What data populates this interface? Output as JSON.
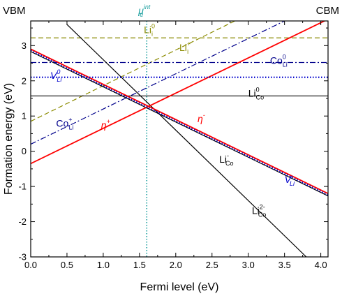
{
  "chart_data": {
    "type": "line",
    "xlabel": "Fermi level (eV)",
    "ylabel": "Formation energy (eV)",
    "xlim": [
      0,
      4.1
    ],
    "ylim": [
      -3,
      3.7
    ],
    "xticks": [
      "0.0",
      "0.5",
      "1.0",
      "1.5",
      "2.0",
      "2.5",
      "3.0",
      "3.5",
      "4.0"
    ],
    "yticks": [
      "-3",
      "-2",
      "-1",
      "0",
      "1",
      "2",
      "3"
    ],
    "grid": false,
    "corner_labels": {
      "left": "VBM",
      "right": "CBM"
    },
    "mu_e_int": {
      "x": 1.6,
      "label": "μ",
      "sub": "e",
      "sup": "int",
      "color": "#1a9e9e"
    },
    "series": [
      {
        "label": "Li",
        "sub": "i",
        "sup": "0",
        "style": "dash",
        "color": "#8b8b00",
        "x": [
          0,
          4.1
        ],
        "y": [
          3.22,
          3.22
        ],
        "label_pos": [
          1.56,
          3.35
        ]
      },
      {
        "label": "Li",
        "sub": "i",
        "sup": "+",
        "style": "dash",
        "color": "#8b8b00",
        "x": [
          0,
          4.1
        ],
        "y": [
          0.85,
          5.0
        ],
        "label_pos": [
          2.05,
          2.85
        ]
      },
      {
        "label": "Co",
        "sub": "Li",
        "sup": "0",
        "style": "dashdot",
        "color": "#00008b",
        "x": [
          0,
          4.1
        ],
        "y": [
          2.52,
          2.52
        ],
        "label_pos": [
          3.3,
          2.48
        ]
      },
      {
        "label": "Co",
        "sub": "Li",
        "sup": "+",
        "style": "dashdot",
        "color": "#00008b",
        "x": [
          0,
          4.1
        ],
        "y": [
          0.2,
          4.3
        ],
        "label_pos": [
          0.35,
          0.7
        ]
      },
      {
        "label": "V",
        "sub": "Li",
        "sup": "0",
        "style": "dot",
        "color": "#0000cc",
        "x": [
          0,
          4.1
        ],
        "y": [
          2.1,
          2.1
        ],
        "label_pos": [
          0.27,
          2.05
        ]
      },
      {
        "label": "Li",
        "sub": "Co",
        "sup": "0",
        "style": "solid",
        "color": "#000000",
        "x": [
          0,
          4.1
        ],
        "y": [
          1.57,
          1.57
        ],
        "label_pos": [
          3.0,
          1.55
        ]
      },
      {
        "label": "Li",
        "sub": "Co",
        "sup": "2-",
        "style": "solid",
        "color": "#000000",
        "x": [
          0.5,
          3.8
        ],
        "y": [
          3.6,
          -3.0
        ],
        "label_pos": [
          3.05,
          -1.78
        ]
      },
      {
        "label": "Li",
        "sub": "Co",
        "sup": "-",
        "style": "solid",
        "color": "#000000",
        "x": [
          0,
          4.1
        ],
        "y": [
          2.83,
          -1.27
        ],
        "label_pos": [
          2.6,
          -0.32
        ]
      },
      {
        "label": "V",
        "sub": "Li",
        "sup": "-",
        "style": "dot",
        "color": "#0000cc",
        "x": [
          0,
          4.1
        ],
        "y": [
          2.86,
          -1.24
        ],
        "label_pos": [
          3.5,
          -0.9
        ]
      },
      {
        "label": "η",
        "sub": "",
        "sup": "-",
        "style": "solid",
        "color": "#ff0000",
        "x": [
          0,
          4.1
        ],
        "y": [
          2.9,
          -1.2
        ],
        "label_pos": [
          2.3,
          0.83
        ]
      },
      {
        "label": "η",
        "sub": "",
        "sup": "+",
        "style": "solid",
        "color": "#ff0000",
        "x": [
          0,
          4.1
        ],
        "y": [
          -0.35,
          3.75
        ],
        "label_pos": [
          0.97,
          0.65
        ]
      }
    ]
  }
}
